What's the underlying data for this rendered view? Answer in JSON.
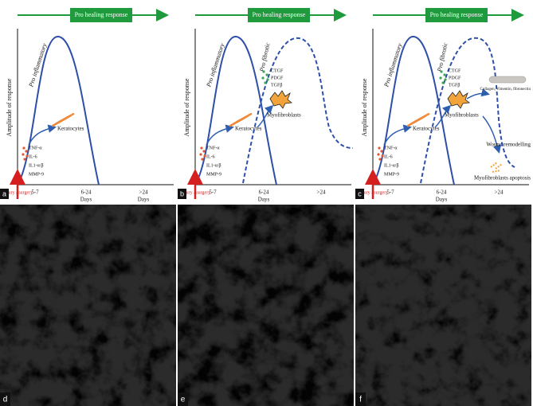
{
  "panels": [
    {
      "label": "a",
      "header": "Pro healing response",
      "inflammatory_label": "Pro inflammatory",
      "y_axis_label": "Amplitude of response",
      "cytokines": [
        "TNF-α",
        "IL-6",
        "IL1-α/β",
        "MMP-9"
      ],
      "keratocytes": "Keratocytes",
      "injury": "Injury / surgery",
      "x_labels": [
        "5-7",
        "6-24",
        ">24"
      ],
      "days_labels": [
        "Days",
        "Days"
      ]
    },
    {
      "label": "b",
      "header": "Pro healing response",
      "inflammatory_label": "Pro inflammatory",
      "y_axis_label": "Amplitude of response",
      "cytokines": [
        "TNF-α",
        "IL-6",
        "IL1-α/β",
        "MMP-9"
      ],
      "keratocytes": "Keratocytes",
      "injury": "Injury / surgery",
      "x_labels": [
        "5-7",
        "6-24",
        ">24"
      ],
      "days_labels": [
        "Days"
      ],
      "fibrotic_label": "Pro fibrotic",
      "growth_factors": [
        "CTGF",
        "PDGF",
        "TGFβ"
      ],
      "myofibroblasts": "Myofibroblasts"
    },
    {
      "label": "c",
      "header": "Pro healing response",
      "inflammatory_label": "Pro inflammatory",
      "y_axis_label": "Amplitude of response",
      "cytokines": [
        "TNF-α",
        "IL-6",
        "IL1-α/β",
        "MMP-9"
      ],
      "keratocytes": "Keratocytes",
      "injury": "Injury / surgery",
      "x_labels": [
        "5-7",
        "6-24",
        ">24"
      ],
      "days_labels": [
        "Days"
      ],
      "fibrotic_label": "Pro fibrotic",
      "growth_factors": [
        "CTGF",
        "PDGF",
        "TGFβ"
      ],
      "myofibroblasts": "Myofibroblasts",
      "ecm": "Collagen, Vimentin, fibronectin",
      "remodelling": "Wound remodelling",
      "apoptosis": "Myofibroblasts apoptosis"
    }
  ],
  "images": [
    {
      "label": "d"
    },
    {
      "label": "e"
    },
    {
      "label": "f"
    }
  ]
}
